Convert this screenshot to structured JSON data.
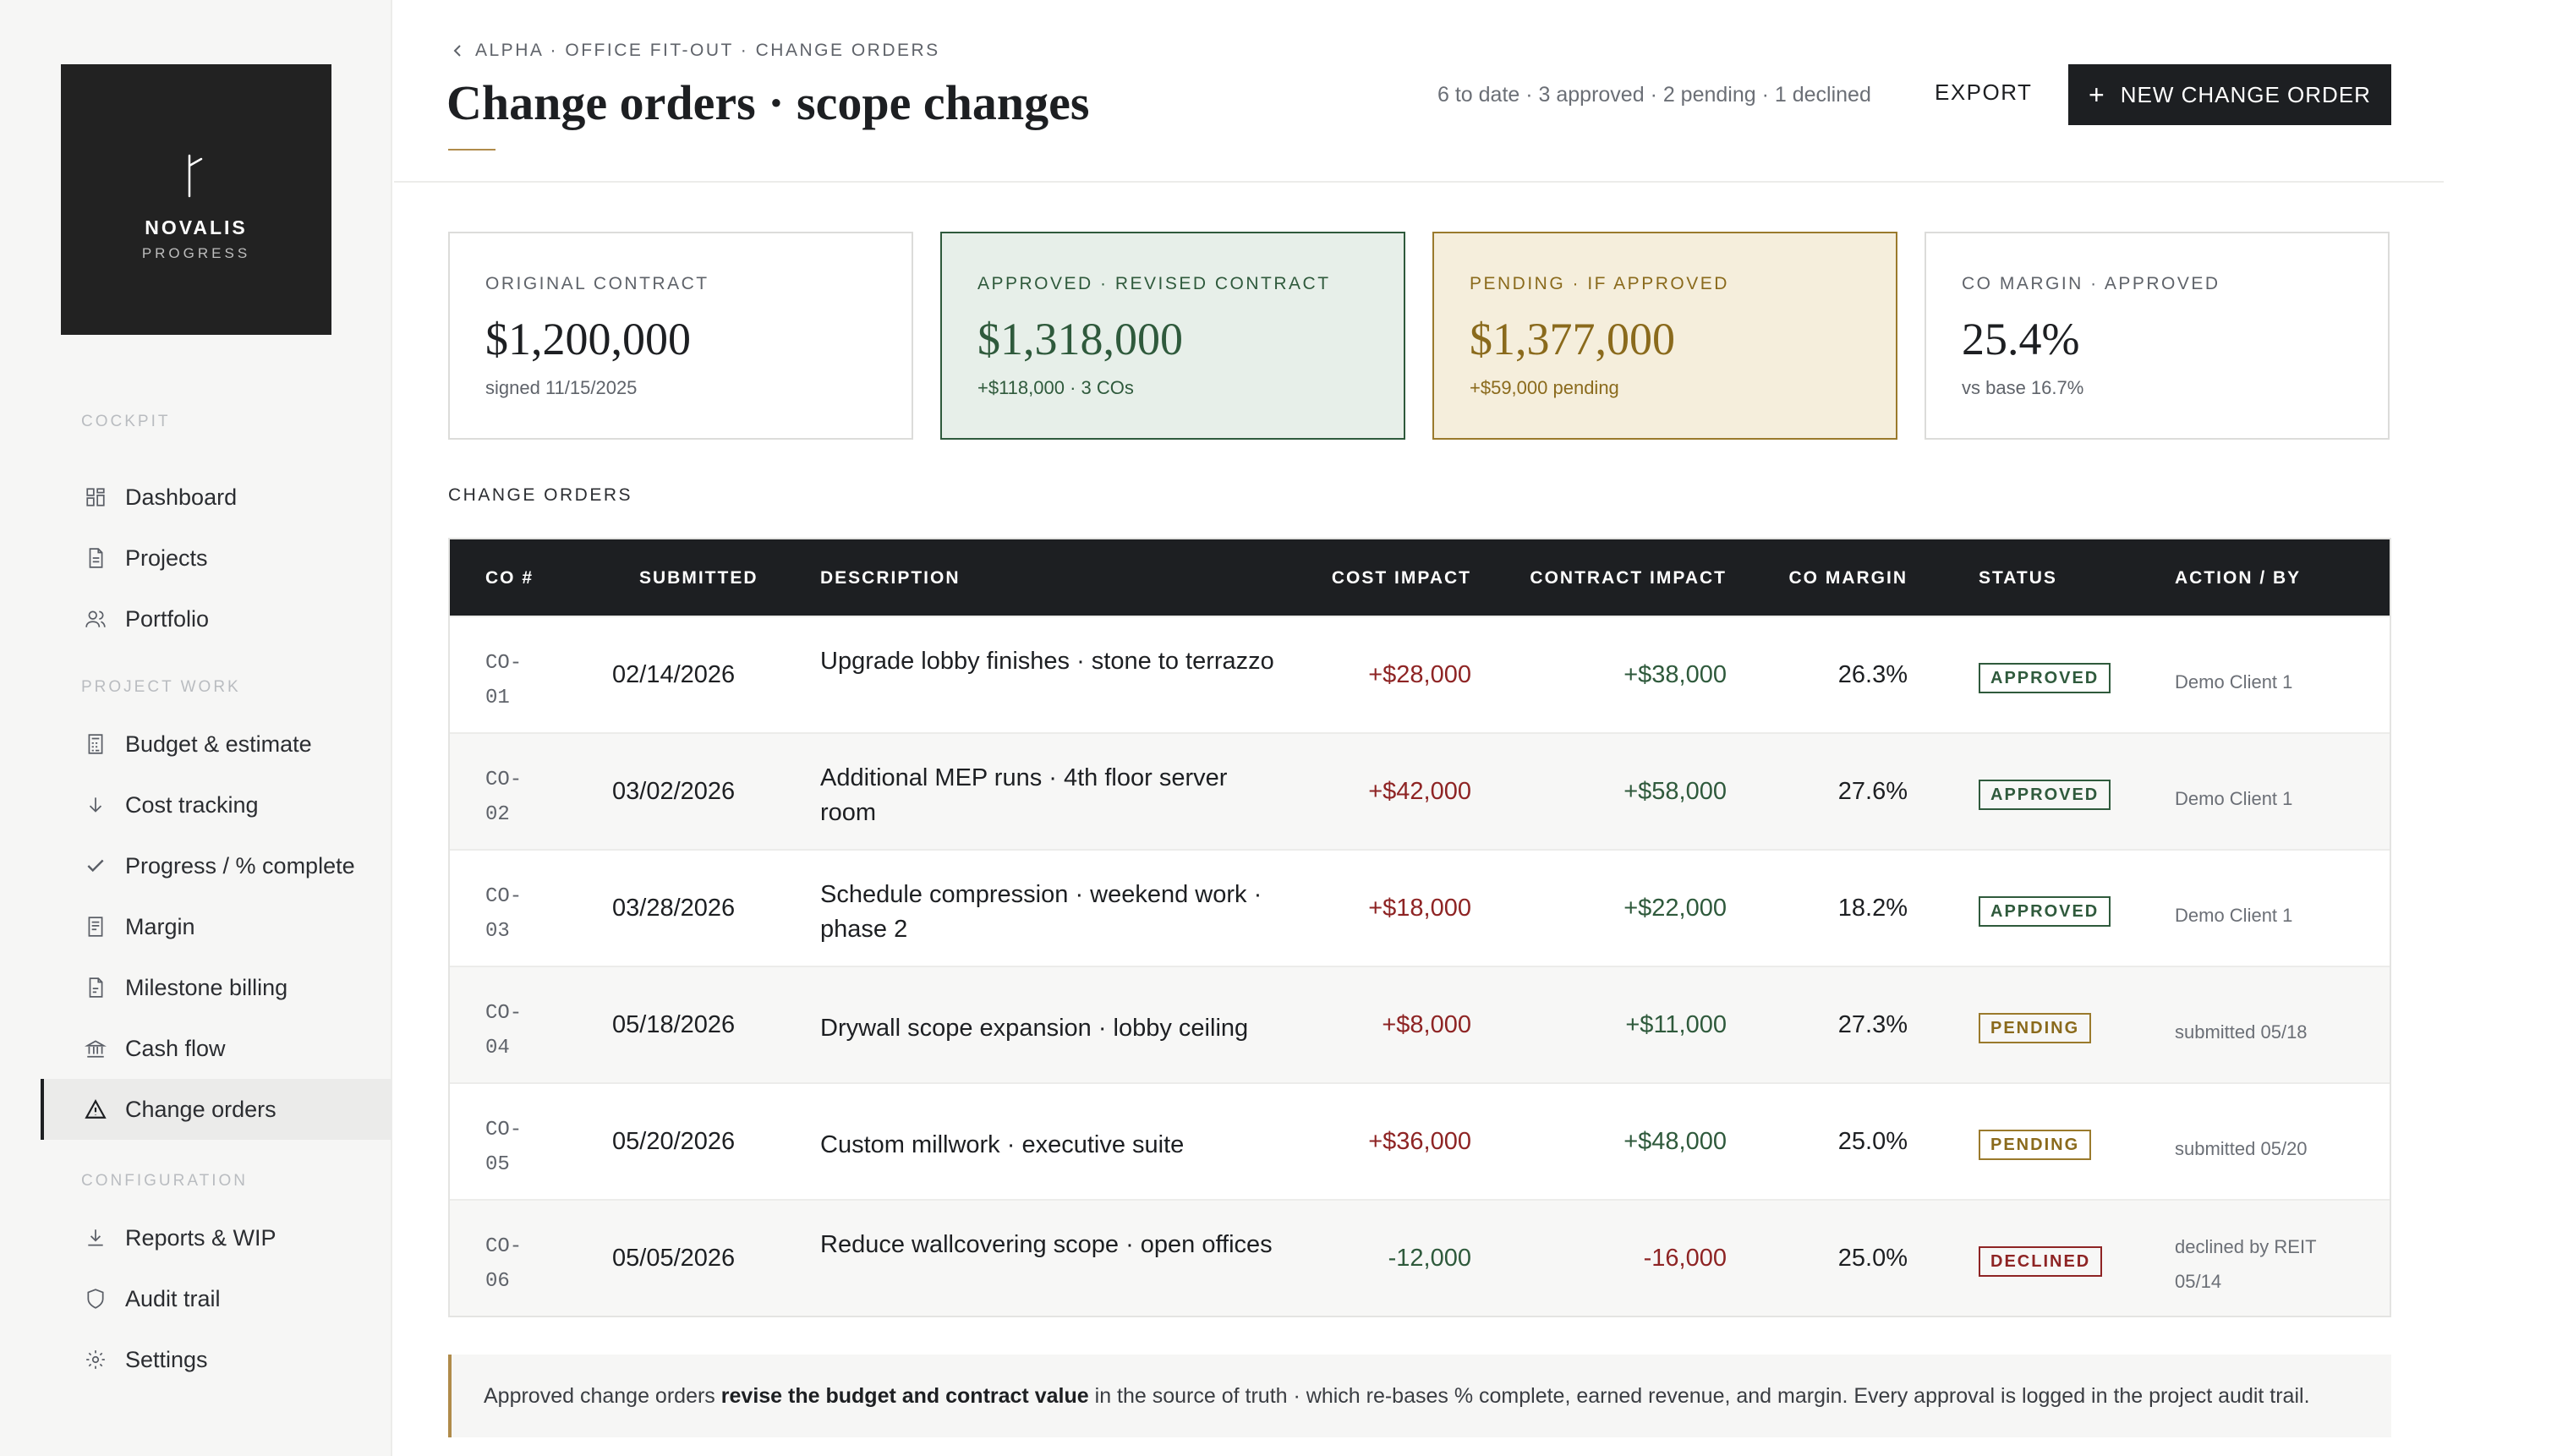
{
  "brand": {
    "name": "NOVALIS",
    "subtitle": "PROGRESS"
  },
  "sidebar": {
    "sections": {
      "cockpit": "COCKPIT",
      "project_work": "PROJECT WORK",
      "configuration": "CONFIGURATION"
    },
    "items": [
      {
        "label": "Dashboard",
        "icon": "grid-icon"
      },
      {
        "label": "Projects",
        "icon": "document-icon"
      },
      {
        "label": "Portfolio",
        "icon": "users-icon"
      },
      {
        "label": "Budget & estimate",
        "icon": "calculator-icon"
      },
      {
        "label": "Cost tracking",
        "icon": "arrow-down-icon"
      },
      {
        "label": "Progress / % complete",
        "icon": "check-icon"
      },
      {
        "label": "Margin",
        "icon": "ledger-icon"
      },
      {
        "label": "Milestone billing",
        "icon": "invoice-icon"
      },
      {
        "label": "Cash flow",
        "icon": "bank-icon"
      },
      {
        "label": "Change orders",
        "icon": "warning-icon",
        "active": true
      },
      {
        "label": "Reports & WIP",
        "icon": "download-icon"
      },
      {
        "label": "Audit trail",
        "icon": "shield-icon"
      },
      {
        "label": "Settings",
        "icon": "gear-icon"
      }
    ]
  },
  "header": {
    "breadcrumb": "ALPHA · OFFICE FIT-OUT · CHANGE ORDERS",
    "title": "Change orders · scope changes",
    "summary": "6 to date · 3 approved · 2 pending · 1 declined",
    "export_label": "EXPORT",
    "new_label": "NEW CHANGE ORDER"
  },
  "kpis": [
    {
      "label": "ORIGINAL CONTRACT",
      "value": "$1,200,000",
      "sub": "signed 11/15/2025"
    },
    {
      "label": "APPROVED · REVISED CONTRACT",
      "value": "$1,318,000",
      "sub": "+$118,000 · 3 COs"
    },
    {
      "label": "PENDING · IF APPROVED",
      "value": "$1,377,000",
      "sub": "+$59,000 pending"
    },
    {
      "label": "CO MARGIN · APPROVED",
      "value": "25.4%",
      "sub": "vs base 16.7%"
    }
  ],
  "table": {
    "section_label": "CHANGE ORDERS",
    "headers": {
      "co": "CO #",
      "submitted": "SUBMITTED",
      "description": "DESCRIPTION",
      "cost": "COST IMPACT",
      "contract": "CONTRACT IMPACT",
      "margin": "CO MARGIN",
      "status": "STATUS",
      "action": "ACTION / BY"
    },
    "rows": [
      {
        "co_a": "CO-",
        "co_b": "01",
        "submitted": "02/14/2026",
        "description": "Upgrade lobby finishes · stone to terrazzo",
        "cost": "+$28,000",
        "contract": "+$38,000",
        "margin": "26.3%",
        "status": "APPROVED",
        "action": "Demo Client 1"
      },
      {
        "co_a": "CO-",
        "co_b": "02",
        "submitted": "03/02/2026",
        "description": "Additional MEP runs · 4th floor server room",
        "cost": "+$42,000",
        "contract": "+$58,000",
        "margin": "27.6%",
        "status": "APPROVED",
        "action": "Demo Client 1"
      },
      {
        "co_a": "CO-",
        "co_b": "03",
        "submitted": "03/28/2026",
        "description": "Schedule compression · weekend work · phase 2",
        "cost": "+$18,000",
        "contract": "+$22,000",
        "margin": "18.2%",
        "status": "APPROVED",
        "action": "Demo Client 1"
      },
      {
        "co_a": "CO-",
        "co_b": "04",
        "submitted": "05/18/2026",
        "description": "Drywall scope expansion · lobby ceiling",
        "cost": "+$8,000",
        "contract": "+$11,000",
        "margin": "27.3%",
        "status": "PENDING",
        "action": "submitted 05/18"
      },
      {
        "co_a": "CO-",
        "co_b": "05",
        "submitted": "05/20/2026",
        "description": "Custom millwork · executive suite",
        "cost": "+$36,000",
        "contract": "+$48,000",
        "margin": "25.0%",
        "status": "PENDING",
        "action": "submitted 05/20"
      },
      {
        "co_a": "CO-",
        "co_b": "06",
        "submitted": "05/05/2026",
        "description": "Reduce wallcovering scope · open offices",
        "cost": "-12,000",
        "contract": "-16,000",
        "margin": "25.0%",
        "status": "DECLINED",
        "action": "declined by REIT 05/14"
      }
    ]
  },
  "note": {
    "before": "Approved change orders",
    "bold": "revise the budget and contract value",
    "after": "in the source of truth · which re-bases % complete, earned revenue, and margin. Every approval is logged in the project audit trail."
  },
  "colors": {
    "accent_dark": "#1d1f22",
    "approved_green": "#2f5a3c",
    "pending_gold": "#8a6a1c",
    "declined_red": "#8e2424",
    "rule_gold": "#b08b4a"
  }
}
